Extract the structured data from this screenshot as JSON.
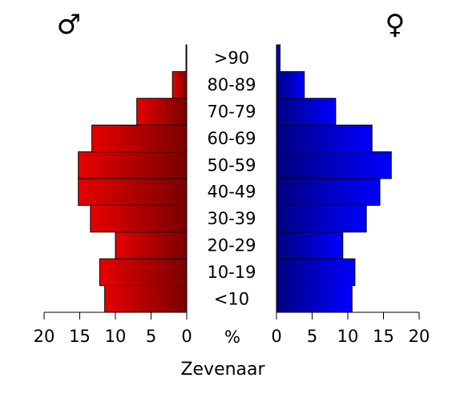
{
  "chart_data": {
    "type": "bar",
    "title": "Zevenaar",
    "center_axis_label": "%",
    "categories": [
      ">90",
      "80-89",
      "70-79",
      "60-69",
      "50-59",
      "40-49",
      "30-39",
      "20-29",
      "10-19",
      "<10"
    ],
    "xlim": [
      0,
      20
    ],
    "ticks": [
      "20",
      "15",
      "10",
      "5",
      "0"
    ],
    "ticks_right": [
      "0",
      "5",
      "10",
      "15",
      "20"
    ],
    "series": [
      {
        "symbol": "♂",
        "side": "left",
        "color": "#e60000",
        "color_dark": "#7a0000",
        "values": [
          0.1,
          2.0,
          7.0,
          13.3,
          15.2,
          15.2,
          13.5,
          10.0,
          12.2,
          11.5
        ]
      },
      {
        "symbol": "♀",
        "side": "right",
        "color": "#0000ff",
        "color_dark": "#000080",
        "values": [
          0.5,
          3.9,
          8.3,
          13.4,
          16.1,
          14.5,
          12.6,
          9.3,
          11.0,
          10.6
        ]
      }
    ]
  }
}
